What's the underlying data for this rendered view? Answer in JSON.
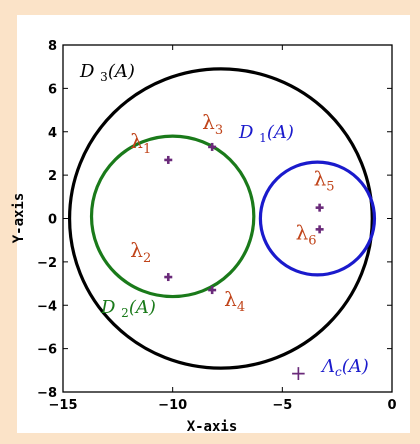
{
  "chart_data": {
    "type": "scatter",
    "xlabel": "X-axis",
    "ylabel": "Y-axis",
    "xlim": [
      -15,
      0
    ],
    "ylim": [
      -8,
      8
    ],
    "xticks": [
      -15,
      -10,
      -5,
      0
    ],
    "yticks": [
      -8,
      -6,
      -4,
      -2,
      0,
      2,
      4,
      6,
      8
    ],
    "xtick_labels": [
      "−15",
      "−10",
      "−5",
      "0"
    ],
    "ytick_labels": [
      "−8",
      "−6",
      "−4",
      "−2",
      "0",
      "2",
      "4",
      "6",
      "8"
    ],
    "grid": false,
    "circles": [
      {
        "label": "D3(A)",
        "center": [
          -7.8,
          0
        ],
        "radius": 6.9,
        "color": "#000000"
      },
      {
        "label": "D2(A)",
        "center": [
          -10,
          0.1
        ],
        "radius": 3.7,
        "color": "#1a7a1a"
      },
      {
        "label": "D1(A)",
        "center": [
          -3.4,
          0
        ],
        "radius": 2.6,
        "color": "#1a1acc"
      }
    ],
    "points": [
      {
        "label": "λ1",
        "x": -10.2,
        "y": 2.7
      },
      {
        "label": "λ2",
        "x": -10.2,
        "y": -2.7
      },
      {
        "label": "λ3",
        "x": -8.2,
        "y": 3.3
      },
      {
        "label": "λ4",
        "x": -8.2,
        "y": -3.3
      },
      {
        "label": "λ5",
        "x": -3.3,
        "y": 0.5
      },
      {
        "label": "λ6",
        "x": -3.3,
        "y": -0.5
      }
    ],
    "point_color": "#6a2a7a",
    "label_color": "#c0441a",
    "legend": {
      "symbol": "+",
      "label": "Λc(A)",
      "position": "bottom-right"
    }
  }
}
